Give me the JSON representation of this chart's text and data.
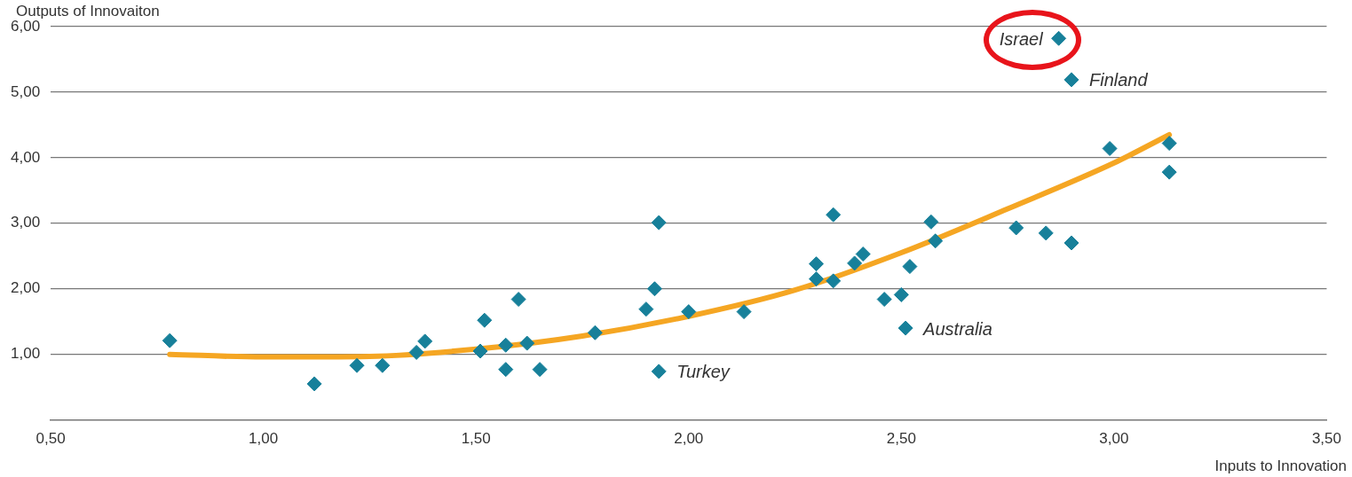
{
  "chart_data": {
    "type": "scatter",
    "xlabel": "Inputs to Innovation",
    "ylabel": "Outputs of Innovaiton",
    "xlim": [
      0.5,
      3.5
    ],
    "xticks": [
      {
        "value": 0.5,
        "label": "0,50"
      },
      {
        "value": 1,
        "label": "1,00"
      },
      {
        "value": 1.5,
        "label": "1,50"
      },
      {
        "value": 2,
        "label": "2,00"
      },
      {
        "value": 2.5,
        "label": "2,50"
      },
      {
        "value": 3,
        "label": "3,00"
      },
      {
        "value": 3.5,
        "label": "3,50"
      }
    ],
    "ylim": [
      0,
      6
    ],
    "yticks": [
      {
        "value": 1,
        "label": "1,00"
      },
      {
        "value": 2,
        "label": "2,00"
      },
      {
        "value": 3,
        "label": "3,00"
      },
      {
        "value": 4,
        "label": "4,00"
      },
      {
        "value": 5,
        "label": "5,00"
      },
      {
        "value": 6,
        "label": "6,00"
      }
    ],
    "grid": "y",
    "legend": false,
    "marker": "diamond",
    "series": [
      {
        "type": "scatter",
        "color": "#17809a",
        "x": [
          0.78,
          1.12,
          1.22,
          1.28,
          1.36,
          1.38,
          1.51,
          1.52,
          1.57,
          1.57,
          1.6,
          1.62,
          1.65,
          1.78,
          1.9,
          1.92,
          1.93,
          1.93,
          2.0,
          2.13,
          2.3,
          2.3,
          2.34,
          2.34,
          2.39,
          2.41,
          2.46,
          2.5,
          2.51,
          2.52,
          2.57,
          2.58,
          2.77,
          2.84,
          2.87,
          2.9,
          2.9,
          2.99,
          3.13,
          3.13
        ],
        "values": [
          1.21,
          0.55,
          0.83,
          0.83,
          1.03,
          1.2,
          1.05,
          1.52,
          1.14,
          0.77,
          1.84,
          1.17,
          0.77,
          1.33,
          1.69,
          2.0,
          3.01,
          0.74,
          1.65,
          1.65,
          2.38,
          2.15,
          3.13,
          2.12,
          2.39,
          2.53,
          1.84,
          1.91,
          1.4,
          2.34,
          3.02,
          2.73,
          2.93,
          2.85,
          5.82,
          2.7,
          5.19,
          4.14,
          4.22,
          3.78
        ]
      },
      {
        "type": "line",
        "color": "#f5a623",
        "marker": "none",
        "x": [
          0.78,
          1.0,
          1.25,
          1.5,
          1.75,
          2.0,
          2.25,
          2.5,
          2.75,
          3.0,
          3.13
        ],
        "values": [
          1.0,
          0.96,
          0.97,
          1.08,
          1.28,
          1.58,
          1.98,
          2.55,
          3.22,
          3.92,
          4.35
        ]
      }
    ],
    "annotations": [
      {
        "text": "Israel",
        "x": 2.87,
        "y": 5.82
      },
      {
        "text": "Finland",
        "x": 2.9,
        "y": 5.19
      },
      {
        "text": "Australia",
        "x": 2.51,
        "y": 1.4
      },
      {
        "text": "Turkey",
        "x": 1.93,
        "y": 0.74
      }
    ]
  }
}
